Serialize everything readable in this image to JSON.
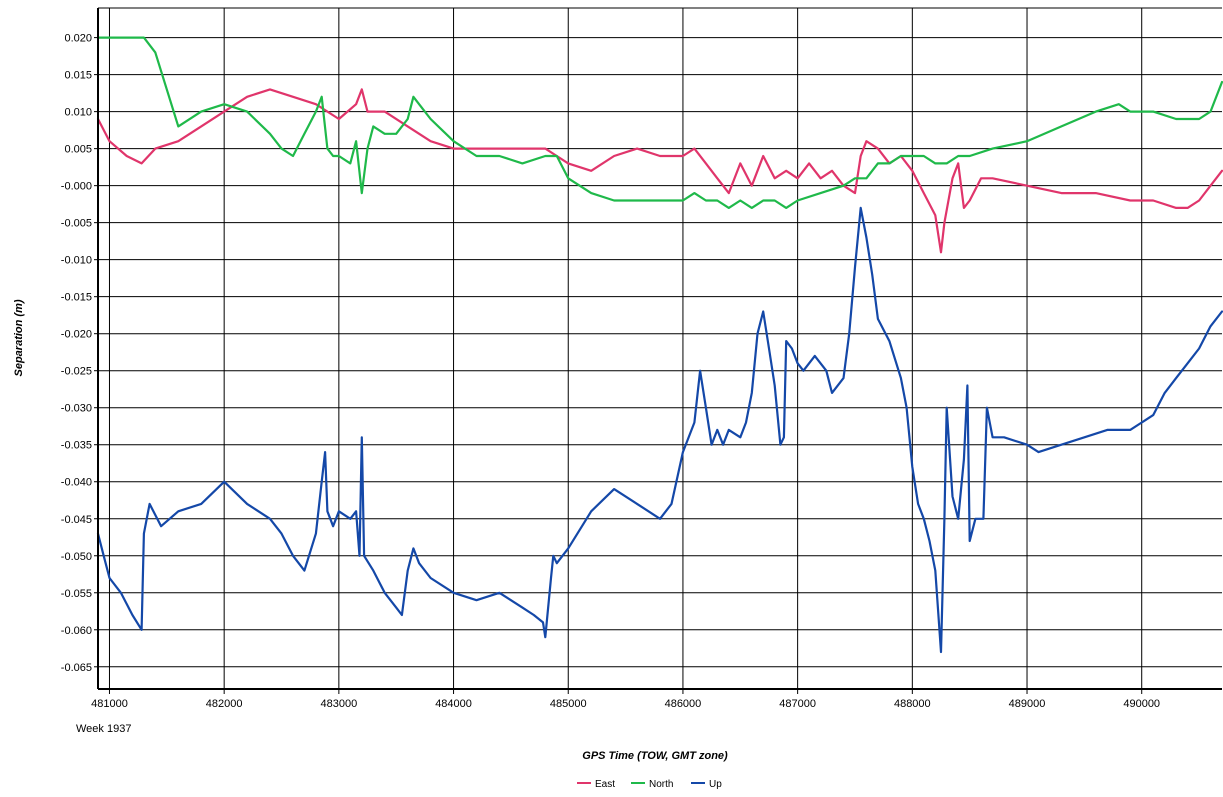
{
  "chart_data": {
    "type": "line",
    "xlabel": "GPS Time (TOW, GMT zone)",
    "ylabel": "Separation (m)",
    "x_week_label": "Week 1937",
    "xlim": [
      480900,
      490700
    ],
    "ylim": [
      -0.068,
      0.024
    ],
    "x_ticks": [
      481000,
      482000,
      483000,
      484000,
      485000,
      486000,
      487000,
      488000,
      489000,
      490000
    ],
    "x_tick_labels": [
      "481000",
      "482000",
      "483000",
      "484000",
      "485000",
      "486000",
      "487000",
      "488000",
      "489000",
      "490000"
    ],
    "y_ticks": [
      0.02,
      0.015,
      0.01,
      0.005,
      0.0,
      -0.005,
      -0.01,
      -0.015,
      -0.02,
      -0.025,
      -0.03,
      -0.035,
      -0.04,
      -0.045,
      -0.05,
      -0.055,
      -0.06,
      -0.065
    ],
    "y_tick_labels": [
      "0.020",
      "0.015",
      "0.010",
      "0.005",
      "-0.000",
      "-0.005",
      "-0.010",
      "-0.015",
      "-0.020",
      "-0.025",
      "-0.030",
      "-0.035",
      "-0.040",
      "-0.045",
      "-0.050",
      "-0.055",
      "-0.060",
      "-0.065"
    ],
    "grid": true,
    "legend_position": "bottom-center",
    "series": [
      {
        "name": "East",
        "color": "#e0356b",
        "x": [
          480900,
          481000,
          481150,
          481280,
          481400,
          481600,
          481800,
          482000,
          482200,
          482400,
          482600,
          482800,
          483000,
          483150,
          483200,
          483250,
          483400,
          483600,
          483800,
          484000,
          484200,
          484400,
          484600,
          484800,
          484900,
          485000,
          485200,
          485400,
          485600,
          485800,
          486000,
          486100,
          486200,
          486300,
          486400,
          486500,
          486600,
          486700,
          486800,
          486900,
          487000,
          487100,
          487200,
          487300,
          487400,
          487500,
          487550,
          487600,
          487700,
          487800,
          487900,
          488000,
          488100,
          488200,
          488250,
          488280,
          488350,
          488400,
          488450,
          488500,
          488600,
          488700,
          489000,
          489300,
          489600,
          489900,
          490100,
          490300,
          490400,
          490500,
          490700
        ],
        "y": [
          0.009,
          0.006,
          0.004,
          0.003,
          0.005,
          0.006,
          0.008,
          0.01,
          0.012,
          0.013,
          0.012,
          0.011,
          0.009,
          0.011,
          0.013,
          0.01,
          0.01,
          0.008,
          0.006,
          0.005,
          0.005,
          0.005,
          0.005,
          0.005,
          0.004,
          0.003,
          0.002,
          0.004,
          0.005,
          0.004,
          0.004,
          0.005,
          0.003,
          0.001,
          -0.001,
          0.003,
          0.0,
          0.004,
          0.001,
          0.002,
          0.001,
          0.003,
          0.001,
          0.002,
          0.0,
          -0.001,
          0.004,
          0.006,
          0.005,
          0.003,
          0.004,
          0.002,
          -0.001,
          -0.004,
          -0.009,
          -0.005,
          0.001,
          0.003,
          -0.003,
          -0.002,
          0.001,
          0.001,
          0.0,
          -0.001,
          -0.001,
          -0.002,
          -0.002,
          -0.003,
          -0.003,
          -0.002,
          0.002
        ]
      },
      {
        "name": "North",
        "color": "#1fb94a",
        "x": [
          480900,
          481000,
          481150,
          481300,
          481400,
          481500,
          481600,
          481800,
          482000,
          482200,
          482400,
          482500,
          482600,
          482700,
          482800,
          482850,
          482900,
          482950,
          483000,
          483100,
          483150,
          483200,
          483250,
          483300,
          483400,
          483500,
          483600,
          483650,
          483700,
          483800,
          484000,
          484200,
          484400,
          484600,
          484800,
          484900,
          485000,
          485200,
          485400,
          485600,
          485800,
          486000,
          486100,
          486200,
          486300,
          486400,
          486500,
          486600,
          486700,
          486800,
          486900,
          487000,
          487200,
          487400,
          487500,
          487600,
          487700,
          487800,
          487900,
          488000,
          488100,
          488200,
          488300,
          488400,
          488500,
          488700,
          489000,
          489300,
          489600,
          489800,
          489900,
          490100,
          490300,
          490500,
          490600,
          490700
        ],
        "y": [
          0.02,
          0.02,
          0.02,
          0.02,
          0.018,
          0.013,
          0.008,
          0.01,
          0.011,
          0.01,
          0.007,
          0.005,
          0.004,
          0.007,
          0.01,
          0.012,
          0.005,
          0.004,
          0.004,
          0.003,
          0.006,
          -0.001,
          0.005,
          0.008,
          0.007,
          0.007,
          0.009,
          0.012,
          0.011,
          0.009,
          0.006,
          0.004,
          0.004,
          0.003,
          0.004,
          0.004,
          0.001,
          -0.001,
          -0.002,
          -0.002,
          -0.002,
          -0.002,
          -0.001,
          -0.002,
          -0.002,
          -0.003,
          -0.002,
          -0.003,
          -0.002,
          -0.002,
          -0.003,
          -0.002,
          -0.001,
          0.0,
          0.001,
          0.001,
          0.003,
          0.003,
          0.004,
          0.004,
          0.004,
          0.003,
          0.003,
          0.004,
          0.004,
          0.005,
          0.006,
          0.008,
          0.01,
          0.011,
          0.01,
          0.01,
          0.009,
          0.009,
          0.01,
          0.014
        ]
      },
      {
        "name": "Up",
        "color": "#1448a8",
        "x": [
          480900,
          480950,
          481000,
          481100,
          481200,
          481280,
          481300,
          481350,
          481450,
          481600,
          481800,
          482000,
          482200,
          482400,
          482500,
          482600,
          482700,
          482800,
          482850,
          482880,
          482900,
          482950,
          483000,
          483100,
          483150,
          483180,
          483200,
          483220,
          483300,
          483400,
          483500,
          483550,
          483600,
          483650,
          483700,
          483800,
          484000,
          484200,
          484400,
          484600,
          484700,
          484780,
          484800,
          484850,
          484870,
          484900,
          485000,
          485200,
          485400,
          485600,
          485800,
          485900,
          486000,
          486100,
          486150,
          486200,
          486250,
          486300,
          486350,
          486400,
          486500,
          486550,
          486600,
          486650,
          486700,
          486750,
          486800,
          486850,
          486880,
          486900,
          486950,
          487000,
          487050,
          487150,
          487250,
          487300,
          487400,
          487450,
          487500,
          487550,
          487600,
          487650,
          487700,
          487800,
          487900,
          487950,
          488000,
          488050,
          488100,
          488150,
          488200,
          488250,
          488280,
          488300,
          488350,
          488400,
          488450,
          488480,
          488500,
          488550,
          488600,
          488620,
          488650,
          488700,
          488800,
          489000,
          489100,
          489300,
          489500,
          489700,
          489900,
          490000,
          490100,
          490200,
          490300,
          490400,
          490500,
          490600,
          490700
        ],
        "y": [
          -0.047,
          -0.05,
          -0.053,
          -0.055,
          -0.058,
          -0.06,
          -0.047,
          -0.043,
          -0.046,
          -0.044,
          -0.043,
          -0.04,
          -0.043,
          -0.045,
          -0.047,
          -0.05,
          -0.052,
          -0.047,
          -0.04,
          -0.036,
          -0.044,
          -0.046,
          -0.044,
          -0.045,
          -0.044,
          -0.05,
          -0.034,
          -0.05,
          -0.052,
          -0.055,
          -0.057,
          -0.058,
          -0.052,
          -0.049,
          -0.051,
          -0.053,
          -0.055,
          -0.056,
          -0.055,
          -0.057,
          -0.058,
          -0.059,
          -0.061,
          -0.053,
          -0.05,
          -0.051,
          -0.049,
          -0.044,
          -0.041,
          -0.043,
          -0.045,
          -0.043,
          -0.036,
          -0.032,
          -0.025,
          -0.03,
          -0.035,
          -0.033,
          -0.035,
          -0.033,
          -0.034,
          -0.032,
          -0.028,
          -0.02,
          -0.017,
          -0.022,
          -0.027,
          -0.035,
          -0.034,
          -0.021,
          -0.022,
          -0.024,
          -0.025,
          -0.023,
          -0.025,
          -0.028,
          -0.026,
          -0.02,
          -0.011,
          -0.003,
          -0.007,
          -0.012,
          -0.018,
          -0.021,
          -0.026,
          -0.03,
          -0.038,
          -0.043,
          -0.045,
          -0.048,
          -0.052,
          -0.063,
          -0.045,
          -0.03,
          -0.042,
          -0.045,
          -0.037,
          -0.027,
          -0.048,
          -0.045,
          -0.045,
          -0.045,
          -0.03,
          -0.034,
          -0.034,
          -0.035,
          -0.036,
          -0.035,
          -0.034,
          -0.033,
          -0.033,
          -0.032,
          -0.031,
          -0.028,
          -0.026,
          -0.024,
          -0.022,
          -0.019,
          -0.017
        ]
      }
    ]
  }
}
